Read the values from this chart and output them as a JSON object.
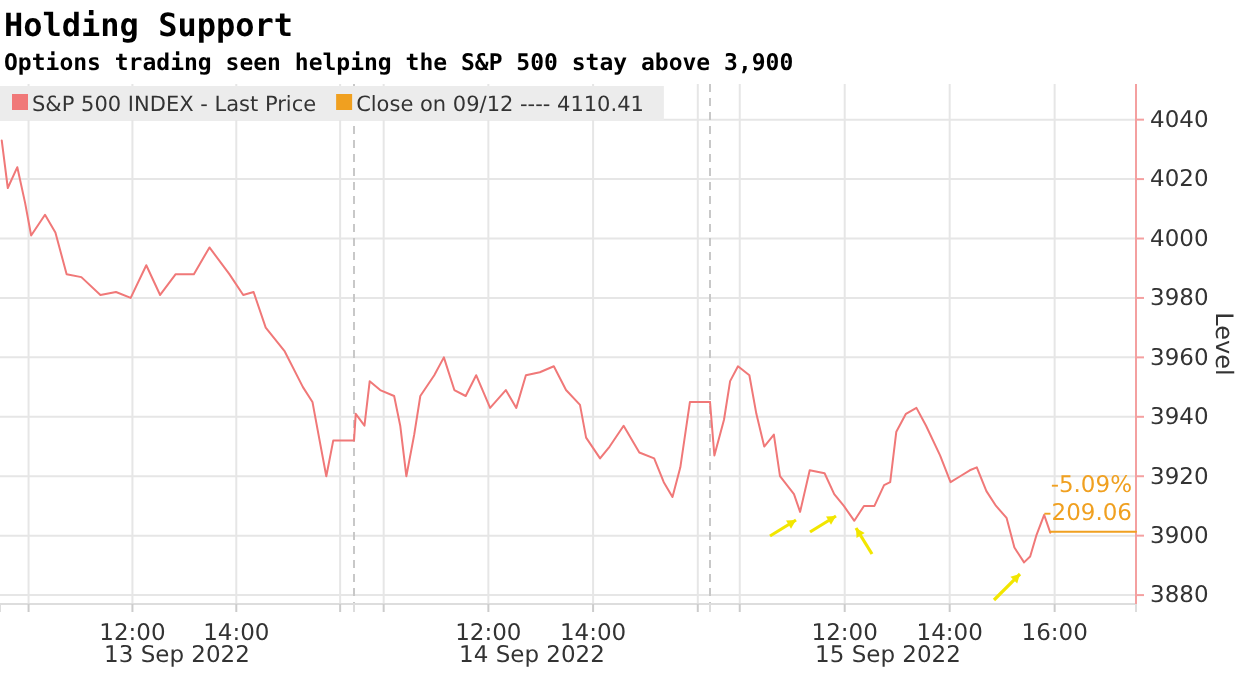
{
  "chart_data": [
    {
      "type": "line",
      "title": "Holding Support",
      "subtitle": "Options trading seen helping the S&P 500 stay above 3,900",
      "xlabel": "13 Sep 2022",
      "x": [
        "2022-09-13T09:29",
        "2022-09-13T09:36",
        "2022-09-13T09:47",
        "2022-09-13T09:56",
        "2022-09-13T10:03",
        "2022-09-13T10:19",
        "2022-09-13T10:31",
        "2022-09-13T10:44",
        "2022-09-13T11:01",
        "2022-09-13T11:23",
        "2022-09-13T11:41",
        "2022-09-13T11:58",
        "2022-09-13T12:16",
        "2022-09-13T12:32",
        "2022-09-13T12:50",
        "2022-09-13T13:11",
        "2022-09-13T13:29",
        "2022-09-13T13:52",
        "2022-09-13T14:08",
        "2022-09-13T14:20",
        "2022-09-13T14:34",
        "2022-09-13T14:56",
        "2022-09-13T15:17",
        "2022-09-13T15:28",
        "2022-09-13T15:35",
        "2022-09-13T15:44",
        "2022-09-13T15:52",
        "2022-09-13T15:58",
        "2022-09-13T16:16"
      ],
      "series": [
        {
          "name": "S&P 500 INDEX - Last Price",
          "color": "#f07878",
          "values": [
            4033,
            4017,
            4024,
            4012,
            4001,
            4008,
            4002,
            3988,
            3987,
            3981,
            3982,
            3980,
            3991,
            3981,
            3988,
            3988,
            3997,
            3988,
            3981,
            3982,
            3970,
            3962,
            3950,
            3945,
            3934,
            3920,
            3932,
            3932,
            3932
          ]
        }
      ],
      "xlim": [
        "2022-09-13T09:27",
        "2022-09-13T16:16"
      ],
      "xticks": [
        {
          "value": "2022-09-13T10:00",
          "label": null
        },
        {
          "value": "2022-09-13T12:00",
          "label": "12:00"
        },
        {
          "value": "2022-09-13T14:00",
          "label": "14:00"
        },
        {
          "value": "2022-09-13T16:00",
          "label": null
        }
      ],
      "ylim": [
        3877,
        4052
      ],
      "yticks": [
        3880,
        3900,
        3920,
        3940,
        3960,
        3980,
        4000,
        4020,
        4040
      ],
      "tick_labels": "x",
      "grid": true,
      "legend": "top left",
      "marker": "none",
      "line_style": "solid"
    },
    {
      "type": "line",
      "xlabel": "14 Sep 2022",
      "x": [
        "2022-09-14T09:26",
        "2022-09-14T09:28",
        "2022-09-14T09:38",
        "2022-09-14T09:44",
        "2022-09-14T09:56",
        "2022-09-14T10:12",
        "2022-09-14T10:19",
        "2022-09-14T10:26",
        "2022-09-14T10:35",
        "2022-09-14T10:42",
        "2022-09-14T10:58",
        "2022-09-14T11:09",
        "2022-09-14T11:21",
        "2022-09-14T11:34",
        "2022-09-14T11:46",
        "2022-09-14T12:02",
        "2022-09-14T12:20",
        "2022-09-14T12:32",
        "2022-09-14T12:43",
        "2022-09-14T12:59",
        "2022-09-14T13:15",
        "2022-09-14T13:29",
        "2022-09-14T13:45",
        "2022-09-14T13:52",
        "2022-09-14T14:08",
        "2022-09-14T14:19",
        "2022-09-14T14:35",
        "2022-09-14T14:53",
        "2022-09-14T15:10",
        "2022-09-14T15:21",
        "2022-09-14T15:31",
        "2022-09-14T15:40",
        "2022-09-14T15:51",
        "2022-09-14T16:14"
      ],
      "series": [
        {
          "color": "#f07878",
          "values": [
            3932,
            3941,
            3937,
            3952,
            3949,
            3947,
            3937,
            3920,
            3934,
            3947,
            3954,
            3960,
            3949,
            3947,
            3954,
            3943,
            3949,
            3943,
            3954,
            3955,
            3957,
            3949,
            3944,
            3933,
            3926,
            3930,
            3937,
            3928,
            3926,
            3918,
            3913,
            3923,
            3945,
            3945
          ]
        }
      ],
      "xlim": [
        "2022-09-14T09:26",
        "2022-09-14T16:14"
      ],
      "xticks": [
        {
          "value": "2022-09-14T10:00",
          "label": null
        },
        {
          "value": "2022-09-14T12:00",
          "label": "12:00"
        },
        {
          "value": "2022-09-14T14:00",
          "label": "14:00"
        },
        {
          "value": "2022-09-14T16:00",
          "label": null
        }
      ],
      "ylim": [
        3877,
        4052
      ],
      "yticks": [
        3880,
        3900,
        3920,
        3940,
        3960,
        3980,
        4000,
        4020,
        4040
      ],
      "tick_labels": "x",
      "grid": true,
      "marker": "none",
      "line_style": "solid"
    },
    {
      "type": "line",
      "xlabel": "15 Sep 2022",
      "ylabel": "Level",
      "x": [
        "2022-09-15T09:26",
        "2022-09-15T09:31",
        "2022-09-15T09:42",
        "2022-09-15T09:49",
        "2022-09-15T09:58",
        "2022-09-15T10:11",
        "2022-09-15T10:19",
        "2022-09-15T10:28",
        "2022-09-15T10:39",
        "2022-09-15T10:46",
        "2022-09-15T11:02",
        "2022-09-15T11:09",
        "2022-09-15T11:20",
        "2022-09-15T11:37",
        "2022-09-15T11:48",
        "2022-09-15T11:59",
        "2022-09-15T12:11",
        "2022-09-15T12:22",
        "2022-09-15T12:34",
        "2022-09-15T12:45",
        "2022-09-15T12:52",
        "2022-09-15T12:59",
        "2022-09-15T13:10",
        "2022-09-15T13:22",
        "2022-09-15T13:33",
        "2022-09-15T13:49",
        "2022-09-15T14:01",
        "2022-09-15T14:12",
        "2022-09-15T14:23",
        "2022-09-15T14:31",
        "2022-09-15T14:42",
        "2022-09-15T14:53",
        "2022-09-15T15:05",
        "2022-09-15T15:14",
        "2022-09-15T15:25",
        "2022-09-15T15:32",
        "2022-09-15T15:39",
        "2022-09-15T15:48",
        "2022-09-15T15:55"
      ],
      "series": [
        {
          "color": "#f07878",
          "values": [
            3945,
            3927,
            3939,
            3952,
            3957,
            3954,
            3941,
            3930,
            3934,
            3920,
            3914,
            3908,
            3922,
            3921,
            3914,
            3910,
            3905,
            3910,
            3910,
            3917,
            3918,
            3935,
            3941,
            3943,
            3937,
            3927,
            3918,
            3920,
            3922,
            3923,
            3915,
            3910,
            3906,
            3896,
            3891,
            3893,
            3900,
            3907,
            3901
          ]
        },
        {
          "name": "Close on 09/12 ---- 4110.41",
          "color": "#f0a020",
          "x": [
            "2022-09-15T15:55",
            "2022-09-15T17:33"
          ],
          "values": [
            3901.35,
            3901.35
          ]
        }
      ],
      "xlim": [
        "2022-09-15T09:26",
        "2022-09-15T17:33"
      ],
      "xticks": [
        {
          "value": "2022-09-15T10:00",
          "label": null
        },
        {
          "value": "2022-09-15T12:00",
          "label": "12:00"
        },
        {
          "value": "2022-09-15T14:00",
          "label": "14:00"
        },
        {
          "value": "2022-09-15T16:00",
          "label": "16:00"
        }
      ],
      "ylim": [
        3877,
        4052
      ],
      "yticks": [
        3880,
        3900,
        3920,
        3940,
        3960,
        3980,
        4000,
        4020,
        4040
      ],
      "annotations": [
        "-5.09%",
        "-209.06"
      ],
      "grid": true,
      "marker": "none",
      "line_style": "solid"
    }
  ]
}
